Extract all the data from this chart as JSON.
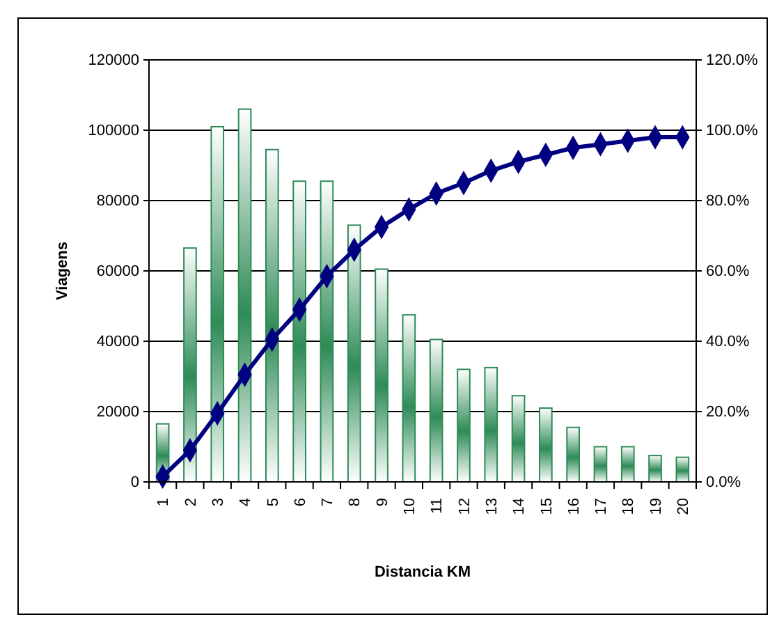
{
  "chart_data": {
    "type": "bar",
    "xlabel": "Distancia KM",
    "ylabel": "Viagens",
    "categories": [
      "1",
      "2",
      "3",
      "4",
      "5",
      "6",
      "7",
      "8",
      "9",
      "10",
      "11",
      "12",
      "13",
      "14",
      "15",
      "16",
      "17",
      "18",
      "19",
      "20"
    ],
    "series": [
      {
        "color": "#2e8b57",
        "values": [
          16500,
          66500,
          101000,
          106000,
          94500,
          85500,
          85500,
          73000,
          60500,
          47500,
          40500,
          32000,
          32500,
          24500,
          21000,
          15500,
          10000,
          10000,
          7500,
          7000
        ]
      },
      {
        "type": "line",
        "axis": "y2",
        "color": "#000080",
        "marker": "diamond",
        "values": [
          1.5,
          9,
          19.5,
          30.5,
          40.5,
          49,
          58.5,
          66,
          72.5,
          77.5,
          82,
          85,
          88.5,
          91,
          93,
          95,
          96,
          97,
          98,
          98
        ]
      }
    ],
    "ylim": [
      0,
      120000
    ],
    "yticks": [
      0,
      20000,
      40000,
      60000,
      80000,
      100000,
      120000
    ],
    "y2lim": [
      0,
      120
    ],
    "y2ticks": [
      {
        "value": 0,
        "label": "0.0%"
      },
      {
        "value": 20,
        "label": "20.0%"
      },
      {
        "value": 40,
        "label": "40.0%"
      },
      {
        "value": 60,
        "label": "60.0%"
      },
      {
        "value": 80,
        "label": "80.0%"
      },
      {
        "value": 100,
        "label": "100.0%"
      },
      {
        "value": 120,
        "label": "120.0%"
      }
    ],
    "grid": "y"
  }
}
